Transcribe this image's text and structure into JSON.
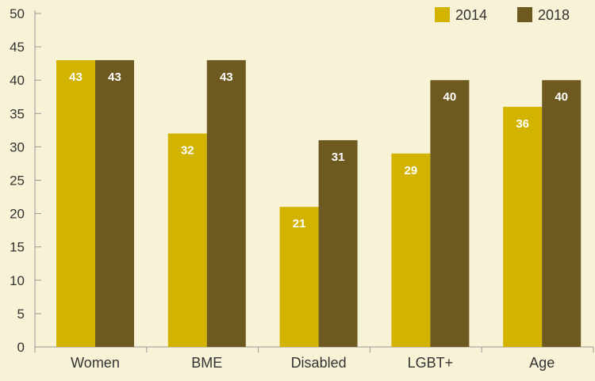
{
  "chart_data": {
    "type": "bar",
    "categories": [
      "Women",
      "BME",
      "Disabled",
      "LGBT+",
      "Age"
    ],
    "series": [
      {
        "name": "2014",
        "values": [
          43,
          32,
          21,
          29,
          36
        ],
        "color": "#d1b300"
      },
      {
        "name": "2018",
        "values": [
          43,
          43,
          31,
          40,
          40
        ],
        "color": "#6e5a20"
      }
    ],
    "data_labels": [
      [
        "43",
        "32",
        "21",
        "29",
        "36"
      ],
      [
        "43",
        "43",
        "31",
        "40",
        "40"
      ]
    ],
    "title": "",
    "xlabel": "",
    "ylabel": "",
    "ylim": [
      0,
      50
    ],
    "yticks": [
      0,
      5,
      10,
      15,
      20,
      25,
      30,
      35,
      40,
      45,
      50
    ],
    "grid": false,
    "legend_position": "top-right",
    "colors": {
      "background": "#f8f2d6",
      "axis": "#9a9a9a",
      "text": "#333333",
      "data_label": "#ffffff"
    }
  }
}
